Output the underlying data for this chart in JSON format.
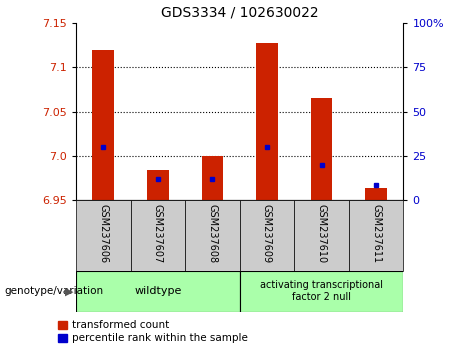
{
  "title": "GDS3334 / 102630022",
  "samples": [
    "GSM237606",
    "GSM237607",
    "GSM237608",
    "GSM237609",
    "GSM237610",
    "GSM237611"
  ],
  "red_values": [
    7.12,
    6.984,
    7.0,
    7.127,
    7.065,
    6.964
  ],
  "blue_values": [
    7.01,
    6.974,
    6.974,
    7.01,
    6.99,
    6.967
  ],
  "baseline": 6.95,
  "ylim_left": [
    6.95,
    7.15
  ],
  "ylim_right": [
    0,
    100
  ],
  "yticks_left": [
    6.95,
    7.0,
    7.05,
    7.1,
    7.15
  ],
  "yticks_right": [
    0,
    25,
    50,
    75,
    100
  ],
  "ytick_labels_right": [
    "0",
    "25",
    "50",
    "75",
    "100%"
  ],
  "left_tick_color": "#cc2200",
  "right_tick_color": "#0000cc",
  "bar_color": "#cc2200",
  "blue_color": "#0000cc",
  "grid_color": "#000000",
  "bg_plot": "#ffffff",
  "bg_xtick": "#cccccc",
  "bg_genotype": "#aaffaa",
  "wildtype_label": "wildtype",
  "atf2null_label": "activating transcriptional\nfactor 2 null",
  "genotype_label": "genotype/variation",
  "legend_red": "transformed count",
  "legend_blue": "percentile rank within the sample",
  "bar_width": 0.4
}
